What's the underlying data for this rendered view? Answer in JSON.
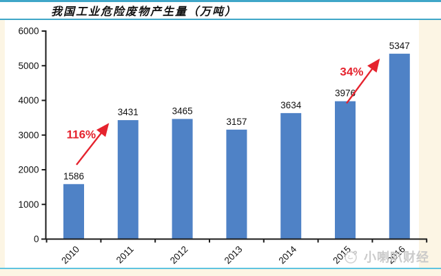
{
  "page": {
    "watermark": {
      "text": "小喇叭财经"
    },
    "colors": {
      "page_background": "#FCF5E4",
      "panel_background": "#FFFFFF",
      "header_rule": "#3FA6C8",
      "bottom_rule": "#5FC4E0",
      "watermark_gray": "#C7C7C7"
    }
  },
  "chart_data": {
    "type": "bar",
    "title": "我国工业危险废物产生量（万吨）",
    "categories": [
      "2010",
      "2011",
      "2012",
      "2013",
      "2014",
      "2015",
      "2016"
    ],
    "values": [
      1586,
      3431,
      3465,
      3157,
      3634,
      3976,
      5347
    ],
    "xlabel": "",
    "ylabel": "",
    "ylim": [
      0,
      6000
    ],
    "ytick_step": 1000,
    "grid": false,
    "legend": null,
    "bar_color": "#4F82C6",
    "axis_color": "#1A1A1A",
    "label_color": "#111111",
    "annotation_color": "#E5232E",
    "xtick_rotation": -45,
    "annotations": [
      {
        "label": "116%",
        "from": 0,
        "to": 1,
        "from_offset": [
          4,
          -28
        ],
        "to_offset": [
          -14,
          6
        ]
      },
      {
        "label": "34%",
        "from": 5,
        "to": 6,
        "from_offset": [
          2,
          3
        ],
        "to_offset": [
          -15,
          9
        ]
      }
    ]
  }
}
